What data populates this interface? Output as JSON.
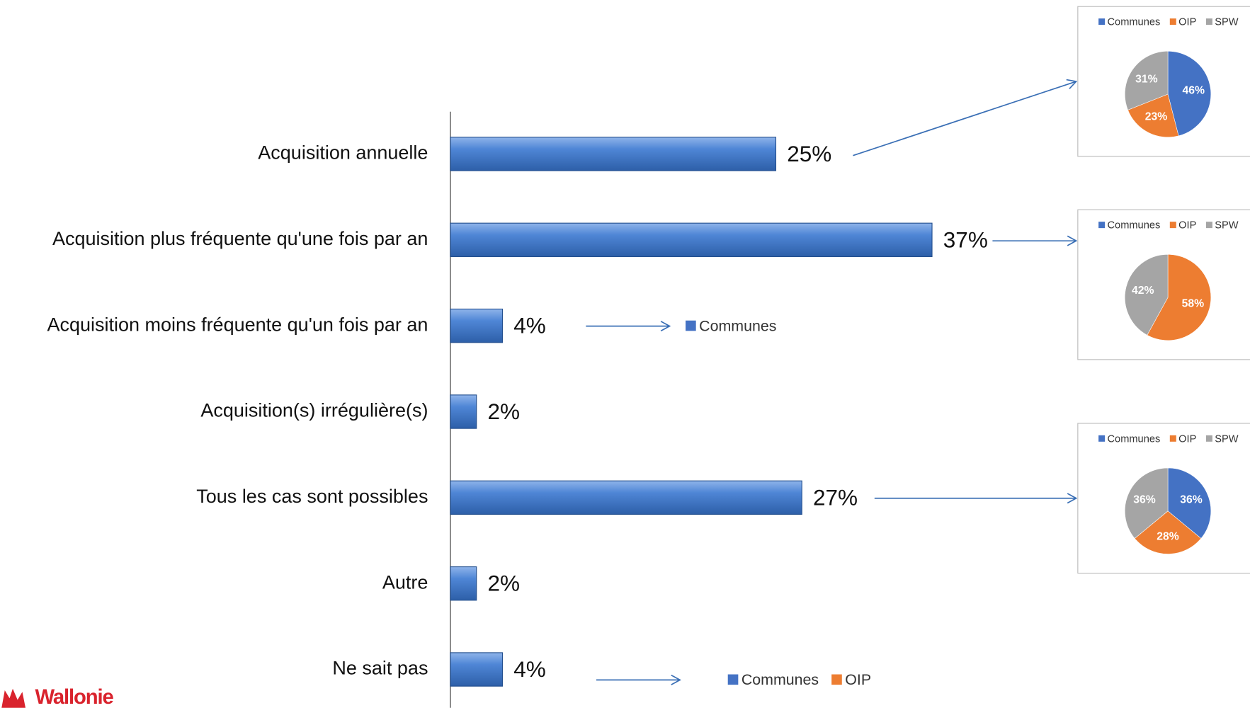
{
  "logo": "Wallonie",
  "chart_data": [
    {
      "type": "bar",
      "orientation": "horizontal",
      "categories": [
        "Acquisition annuelle",
        "Acquisition plus fréquente qu'une fois par an",
        "Acquisition moins fréquente qu'un fois par an",
        "Acquisition(s) irrégulière(s)",
        "Tous les cas sont possibles",
        "Autre",
        "Ne sait pas"
      ],
      "values": [
        25,
        37,
        4,
        2,
        27,
        2,
        4
      ],
      "value_labels": [
        "25%",
        "37%",
        "4%",
        "2%",
        "27%",
        "2%",
        "4%"
      ],
      "color": "#4a7fd0",
      "xlim": [
        0,
        38.4
      ]
    },
    {
      "type": "pie",
      "categories": [
        "Communes",
        "OIP",
        "SPW"
      ],
      "colors": [
        "#4472c4",
        "#ed7d31",
        "#a5a5a5"
      ],
      "values": [
        46,
        23,
        31
      ],
      "value_labels": [
        "46%",
        "23%",
        "31%"
      ]
    },
    {
      "type": "pie",
      "categories": [
        "Communes",
        "OIP",
        "SPW"
      ],
      "colors": [
        "#4472c4",
        "#ed7d31",
        "#a5a5a5"
      ],
      "values": [
        0,
        58,
        42
      ],
      "value_labels": [
        null,
        "58%",
        "42%"
      ]
    },
    {
      "type": "pie",
      "categories": [
        "Communes",
        "OIP",
        "SPW"
      ],
      "colors": [
        "#4472c4",
        "#ed7d31",
        "#a5a5a5"
      ],
      "values": [
        36,
        28,
        36
      ],
      "value_labels": [
        "36%",
        "28%",
        "36%"
      ]
    },
    {
      "type": "legend",
      "series": [
        {
          "name": "Communes",
          "color": "#4472c4"
        }
      ]
    },
    {
      "type": "legend",
      "series": [
        {
          "name": "Communes",
          "color": "#4472c4"
        },
        {
          "name": "OIP",
          "color": "#ed7d31"
        }
      ]
    }
  ]
}
